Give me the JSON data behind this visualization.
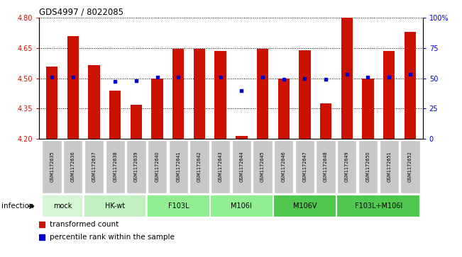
{
  "title": "GDS4997 / 8022085",
  "samples": [
    "GSM1172635",
    "GSM1172636",
    "GSM1172637",
    "GSM1172638",
    "GSM1172639",
    "GSM1172640",
    "GSM1172641",
    "GSM1172642",
    "GSM1172643",
    "GSM1172644",
    "GSM1172645",
    "GSM1172646",
    "GSM1172647",
    "GSM1172648",
    "GSM1172649",
    "GSM1172650",
    "GSM1172651",
    "GSM1172652"
  ],
  "red_values": [
    4.56,
    4.71,
    4.565,
    4.44,
    4.37,
    4.5,
    4.645,
    4.645,
    4.635,
    4.215,
    4.645,
    4.5,
    4.64,
    4.375,
    4.8,
    4.5,
    4.635,
    4.73
  ],
  "blue_values": [
    4.505,
    4.505,
    null,
    4.485,
    4.487,
    4.505,
    4.505,
    null,
    4.505,
    4.44,
    4.505,
    4.495,
    4.498,
    4.495,
    4.52,
    4.505,
    4.505,
    4.52
  ],
  "group_boundaries": [
    0,
    2,
    5,
    8,
    11,
    14,
    18
  ],
  "group_labels": [
    "mock",
    "HK-wt",
    "F103L",
    "M106I",
    "M106V",
    "F103L+M106I"
  ],
  "group_colors": [
    "#d5f5d5",
    "#c0f0c0",
    "#90ee90",
    "#90ee90",
    "#50c850",
    "#50c850"
  ],
  "ymin": 4.2,
  "ymax": 4.8,
  "yticks_left": [
    4.2,
    4.35,
    4.5,
    4.65,
    4.8
  ],
  "yticks_right_pct": [
    0,
    25,
    50,
    75,
    100
  ],
  "bar_color": "#cc1100",
  "dot_color": "#0000cc",
  "sample_box_color": "#c8c8c8",
  "legend_red": "transformed count",
  "legend_blue": "percentile rank within the sample",
  "infection_label": "infection"
}
